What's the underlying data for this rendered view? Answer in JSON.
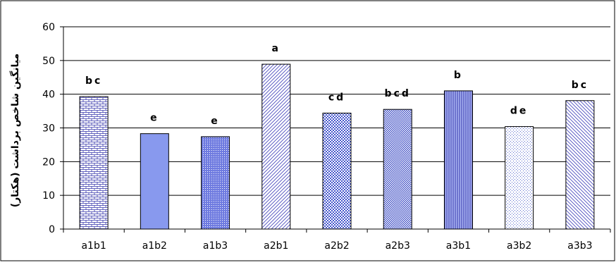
{
  "chart_data": {
    "type": "bar",
    "title": "",
    "xlabel": "",
    "ylabel": "میانگین شاخص برداشت (هکتار)",
    "ylim": [
      0,
      60
    ],
    "yticks": [
      0,
      10,
      20,
      30,
      40,
      50,
      60
    ],
    "grid": true,
    "legend": "none",
    "categories": [
      "a1b1",
      "a1b2",
      "a1b3",
      "a2b1",
      "a2b2",
      "a2b3",
      "a3b1",
      "a3b2",
      "a3b3"
    ],
    "values": [
      39.3,
      28.3,
      27.4,
      48.9,
      34.4,
      35.5,
      41.0,
      30.4,
      38.1
    ],
    "letters": [
      "bc",
      "e",
      "e",
      "a",
      "cd",
      "bcd",
      "b",
      "de",
      "bc"
    ],
    "bar_fills": [
      "brick",
      "solid",
      "dots",
      "diagonal",
      "checker",
      "smallcheck",
      "vertical",
      "lightdots",
      "wdiagonal"
    ],
    "colors": {
      "bar_stroke": "#000000",
      "pattern_blue": "#3333aa",
      "solid_blue": "#8899ee",
      "grid": "#000000"
    }
  }
}
